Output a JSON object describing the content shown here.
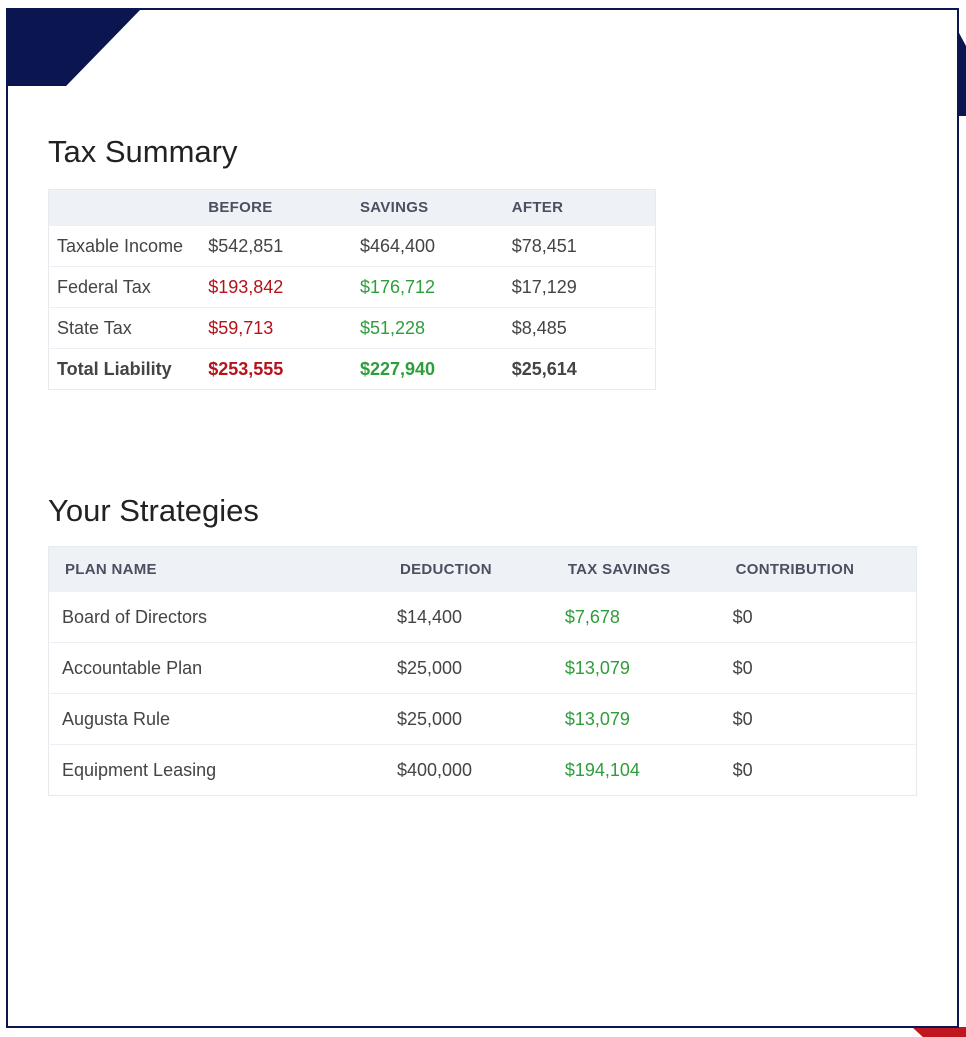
{
  "colors": {
    "brand_navy": "#0b1650",
    "brand_red": "#c0161f",
    "negative_red": "#b5121b",
    "savings_green": "#2e9e3a",
    "header_bg": "#eef2f6"
  },
  "tax_summary": {
    "title": "Tax Summary",
    "headers": [
      "",
      "BEFORE",
      "SAVINGS",
      "AFTER"
    ],
    "rows": [
      {
        "label": "Taxable Income",
        "before": "$542,851",
        "savings": "$464,400",
        "after": "$78,451"
      },
      {
        "label": "Federal Tax",
        "before": "$193,842",
        "savings": "$176,712",
        "after": "$17,129"
      },
      {
        "label": "State Tax",
        "before": "$59,713",
        "savings": "$51,228",
        "after": "$8,485"
      },
      {
        "label": "Total Liability",
        "before": "$253,555",
        "savings": "$227,940",
        "after": "$25,614"
      }
    ]
  },
  "strategies": {
    "title": "Your Strategies",
    "headers": [
      "PLAN NAME",
      "DEDUCTION",
      "TAX SAVINGS",
      "CONTRIBUTION"
    ],
    "rows": [
      {
        "plan": "Board of Directors",
        "deduction": "$14,400",
        "tax_savings": "$7,678",
        "contribution": "$0"
      },
      {
        "plan": "Accountable Plan",
        "deduction": "$25,000",
        "tax_savings": "$13,079",
        "contribution": "$0"
      },
      {
        "plan": "Augusta Rule",
        "deduction": "$25,000",
        "tax_savings": "$13,079",
        "contribution": "$0"
      },
      {
        "plan": "Equipment Leasing",
        "deduction": "$400,000",
        "tax_savings": "$194,104",
        "contribution": "$0"
      }
    ]
  }
}
